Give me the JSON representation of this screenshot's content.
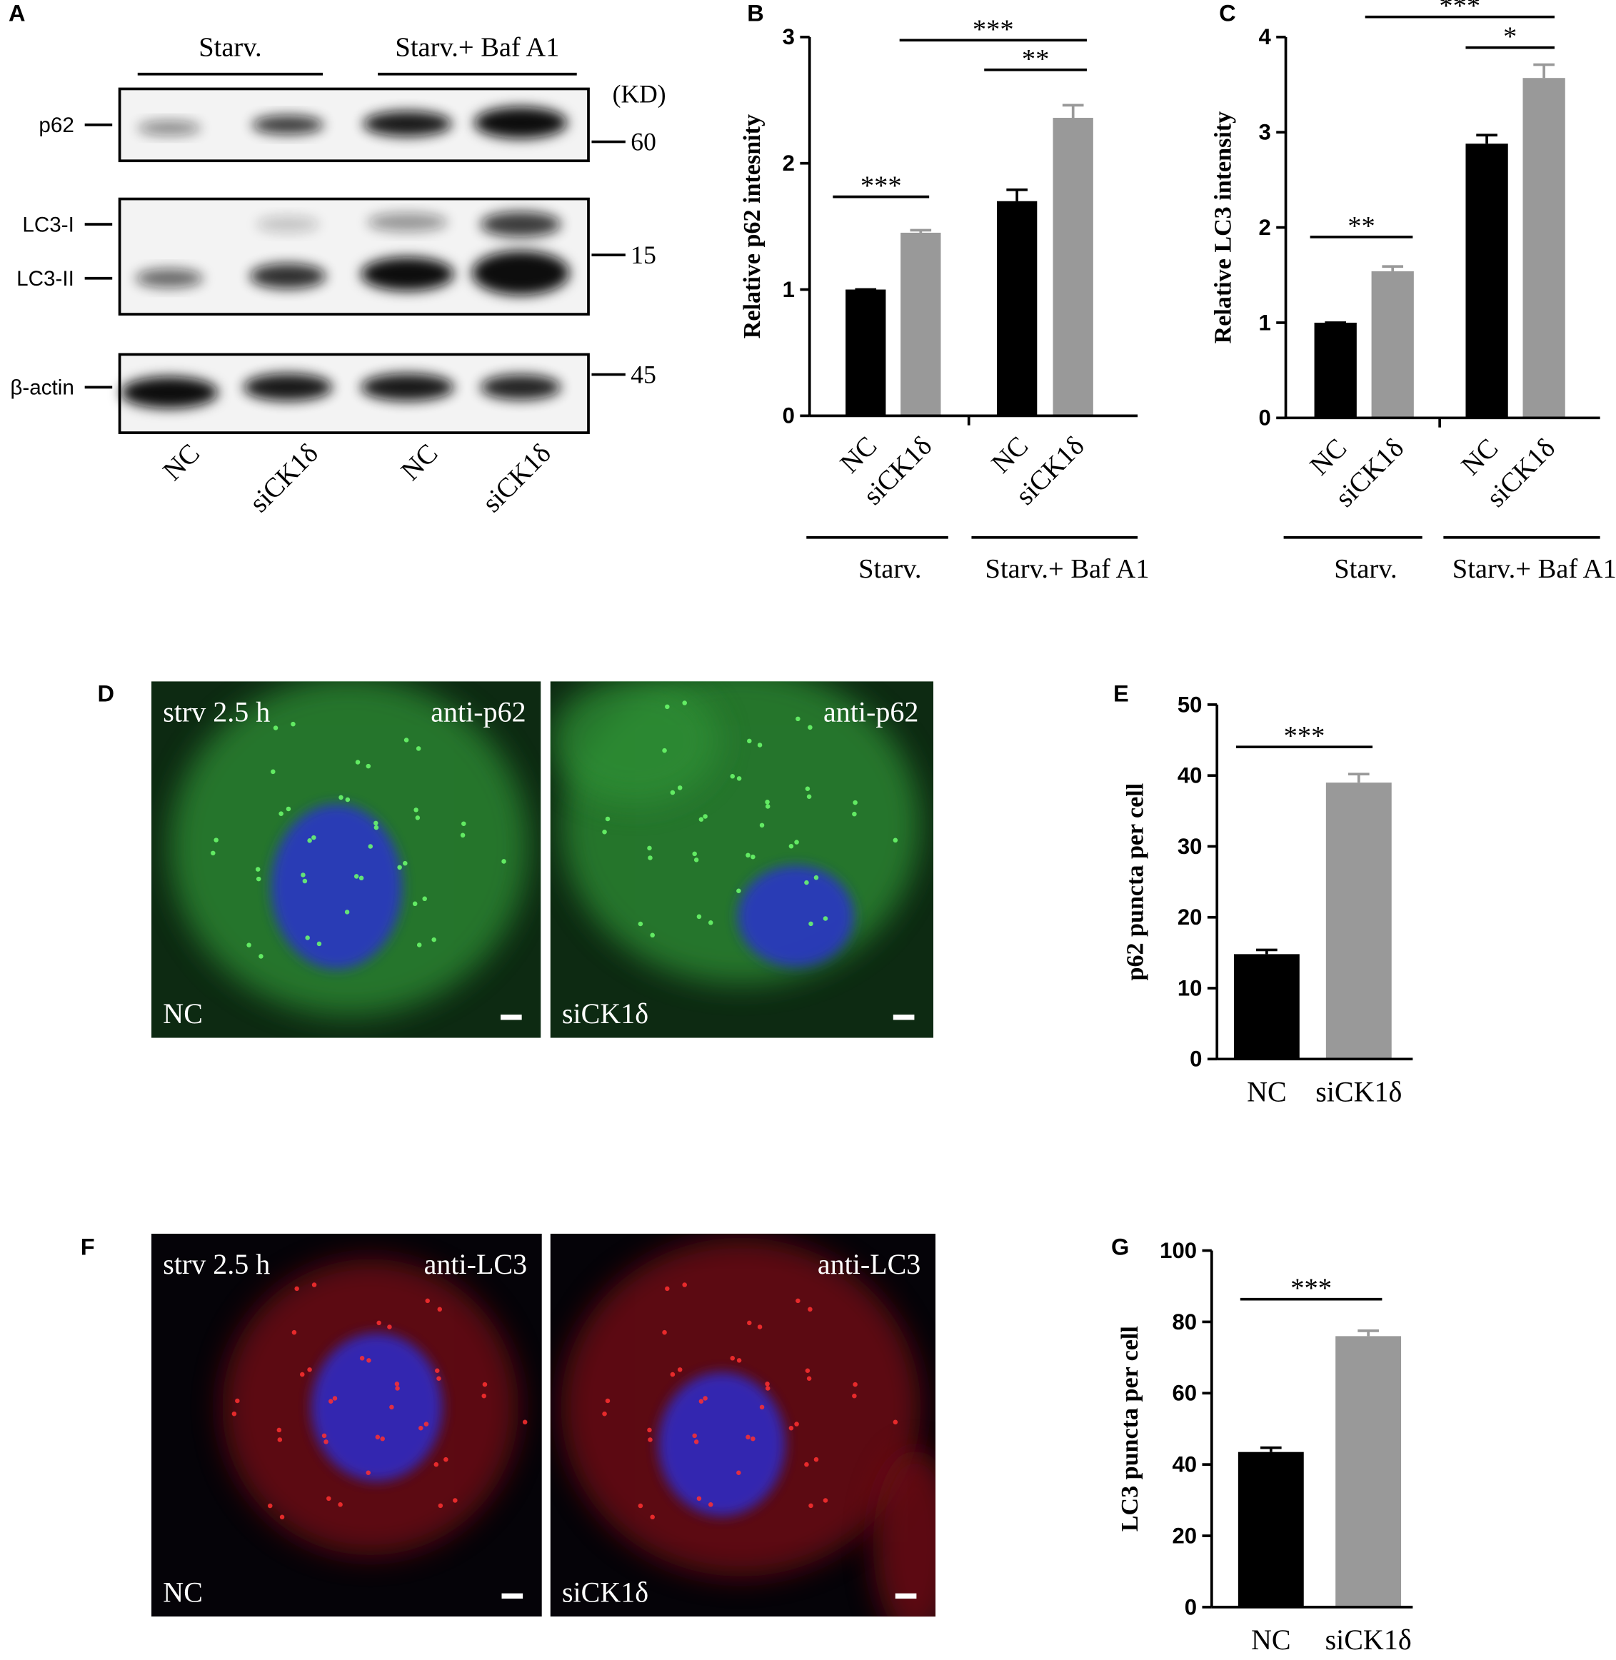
{
  "blot": {
    "panel": "A",
    "groups": [
      "Starv.",
      "Starv.+ Baf A1"
    ],
    "unit": "(KD)",
    "lanes": [
      "NC",
      "siCK1δ",
      "NC",
      "siCK1δ"
    ],
    "strips": [
      {
        "labels": [
          "p62"
        ],
        "markers": [
          60
        ]
      },
      {
        "labels": [
          "LC3-I",
          "LC3-II"
        ],
        "markers": [
          15
        ]
      },
      {
        "labels": [
          "β-actin"
        ],
        "markers": [
          45
        ]
      }
    ]
  },
  "chart_data": [
    {
      "type": "bar",
      "panel": "B",
      "y_label": "Relative p62 intesnity",
      "categories": [
        "NC",
        "siCK1δ",
        "NC",
        "siCK1δ"
      ],
      "groups": [
        "Starv.",
        "Starv.+ Baf A1"
      ],
      "values": [
        1.0,
        1.45,
        1.7,
        2.36
      ],
      "errors": [
        0,
        0.02,
        0.09,
        0.1
      ],
      "colors": [
        "#000000",
        "#999999",
        "#000000",
        "#999999"
      ],
      "ylim": [
        0,
        3
      ],
      "yticks": [
        0,
        1,
        2,
        3
      ],
      "annotations": [
        "***",
        "**",
        "***"
      ]
    },
    {
      "type": "bar",
      "panel": "C",
      "y_label": "Relative LC3 intensity",
      "categories": [
        "NC",
        "siCK1δ",
        "NC",
        "siCK1δ"
      ],
      "groups": [
        "Starv.",
        "Starv.+ Baf A1"
      ],
      "values": [
        1.0,
        1.54,
        2.88,
        3.57
      ],
      "errors": [
        0,
        0.05,
        0.09,
        0.14
      ],
      "colors": [
        "#000000",
        "#999999",
        "#000000",
        "#999999"
      ],
      "ylim": [
        0,
        4
      ],
      "yticks": [
        0,
        1,
        2,
        3,
        4
      ],
      "annotations": [
        "**",
        "*",
        "***"
      ]
    },
    {
      "type": "bar",
      "panel": "E",
      "y_label": "p62 puncta per cell",
      "categories": [
        "NC",
        "siCK1δ"
      ],
      "values": [
        14.8,
        39.0
      ],
      "errors": [
        0.6,
        1.2
      ],
      "colors": [
        "#000000",
        "#999999"
      ],
      "ylim": [
        0,
        50
      ],
      "yticks": [
        0,
        10,
        20,
        30,
        40,
        50
      ],
      "annotations": [
        "***"
      ]
    },
    {
      "type": "bar",
      "panel": "G",
      "y_label": "LC3 puncta per cell",
      "categories": [
        "NC",
        "siCK1δ"
      ],
      "values": [
        43.5,
        76.0
      ],
      "errors": [
        1.2,
        1.5
      ],
      "colors": [
        "#000000",
        "#999999"
      ],
      "ylim": [
        0,
        100
      ],
      "yticks": [
        0,
        20,
        40,
        60,
        80,
        100
      ],
      "annotations": [
        "***"
      ]
    }
  ],
  "micrographs": [
    {
      "panel": "D",
      "condition": "strv 2.5 h",
      "stain": "anti-p62",
      "images": [
        "NC",
        "siCK1δ"
      ]
    },
    {
      "panel": "F",
      "condition": "strv 2.5 h",
      "stain": "anti-LC3",
      "images": [
        "NC",
        "siCK1δ"
      ]
    }
  ]
}
